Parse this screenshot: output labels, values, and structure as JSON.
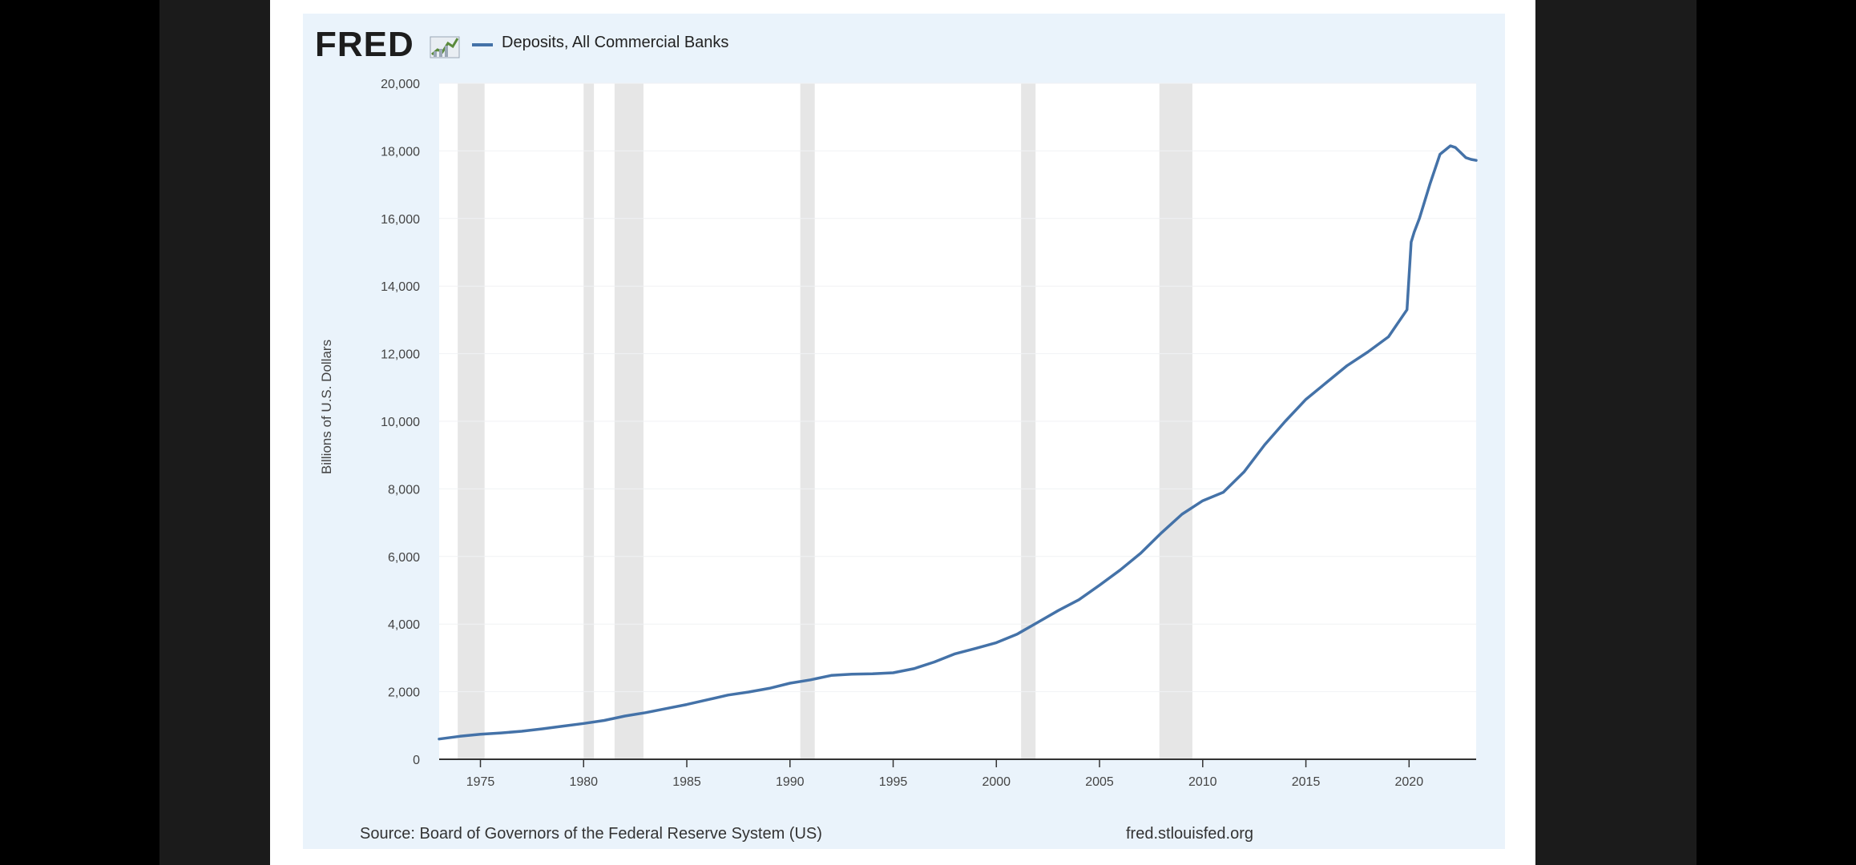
{
  "brand": {
    "logo_text": "FRED",
    "mark_icon": "chart-line-icon"
  },
  "colors": {
    "line": "#4472a8",
    "recession": "#e6e6e6",
    "plot_bg": "#ffffff",
    "card_bg": "#eaf3fb"
  },
  "footer": {
    "source": "Source: Board of Governors of the Federal Reserve System (US)",
    "site": "fred.stlouisfed.org"
  },
  "chart_data": {
    "type": "line",
    "title": "",
    "xlabel": "",
    "ylabel": "Billions of U.S. Dollars",
    "legend_placement": "top-left",
    "grid": true,
    "xlim": [
      1973.0,
      2023.25
    ],
    "ylim": [
      0,
      20000
    ],
    "x_ticks": [
      {
        "value": 1975,
        "label": "1975"
      },
      {
        "value": 1980,
        "label": "1980"
      },
      {
        "value": 1985,
        "label": "1985"
      },
      {
        "value": 1990,
        "label": "1990"
      },
      {
        "value": 1995,
        "label": "1995"
      },
      {
        "value": 2000,
        "label": "2000"
      },
      {
        "value": 2005,
        "label": "2005"
      },
      {
        "value": 2010,
        "label": "2010"
      },
      {
        "value": 2015,
        "label": "2015"
      },
      {
        "value": 2020,
        "label": "2020"
      }
    ],
    "y_ticks": [
      {
        "value": 0,
        "label": "0"
      },
      {
        "value": 2000,
        "label": "2,000"
      },
      {
        "value": 4000,
        "label": "4,000"
      },
      {
        "value": 6000,
        "label": "6,000"
      },
      {
        "value": 8000,
        "label": "8,000"
      },
      {
        "value": 10000,
        "label": "10,000"
      },
      {
        "value": 12000,
        "label": "12,000"
      },
      {
        "value": 14000,
        "label": "14,000"
      },
      {
        "value": 16000,
        "label": "16,000"
      },
      {
        "value": 18000,
        "label": "18,000"
      },
      {
        "value": 20000,
        "label": "20,000"
      }
    ],
    "recessions": [
      [
        1973.9,
        1975.2
      ],
      [
        1980.0,
        1980.5
      ],
      [
        1981.5,
        1982.9
      ],
      [
        1990.5,
        1991.2
      ],
      [
        2001.2,
        2001.9
      ],
      [
        2007.9,
        2009.5
      ]
    ],
    "series": [
      {
        "name": "Deposits, All Commercial Banks",
        "x": [
          1973.0,
          1974.0,
          1975.0,
          1976.0,
          1977.0,
          1978.0,
          1979.0,
          1980.0,
          1981.0,
          1982.0,
          1983.0,
          1984.0,
          1985.0,
          1986.0,
          1987.0,
          1988.0,
          1989.0,
          1990.0,
          1991.0,
          1992.0,
          1993.0,
          1994.0,
          1995.0,
          1996.0,
          1997.0,
          1998.0,
          1999.0,
          2000.0,
          2001.0,
          2002.0,
          2003.0,
          2004.0,
          2005.0,
          2006.0,
          2007.0,
          2008.0,
          2009.0,
          2010.0,
          2011.0,
          2012.0,
          2013.0,
          2014.0,
          2015.0,
          2016.0,
          2017.0,
          2018.0,
          2019.0,
          2019.9,
          2020.1,
          2020.25,
          2020.5,
          2021.0,
          2021.5,
          2022.0,
          2022.25,
          2022.5,
          2022.75,
          2023.0,
          2023.25
        ],
        "y": [
          600,
          680,
          740,
          780,
          830,
          900,
          980,
          1060,
          1150,
          1280,
          1380,
          1500,
          1620,
          1760,
          1900,
          1990,
          2100,
          2250,
          2350,
          2480,
          2520,
          2530,
          2560,
          2680,
          2880,
          3120,
          3280,
          3450,
          3700,
          4050,
          4400,
          4720,
          5150,
          5600,
          6100,
          6700,
          7250,
          7650,
          7900,
          8500,
          9300,
          10000,
          10650,
          11150,
          11650,
          12050,
          12500,
          13300,
          15300,
          15600,
          16000,
          17000,
          17900,
          18150,
          18100,
          17950,
          17800,
          17750,
          17720
        ]
      }
    ]
  }
}
